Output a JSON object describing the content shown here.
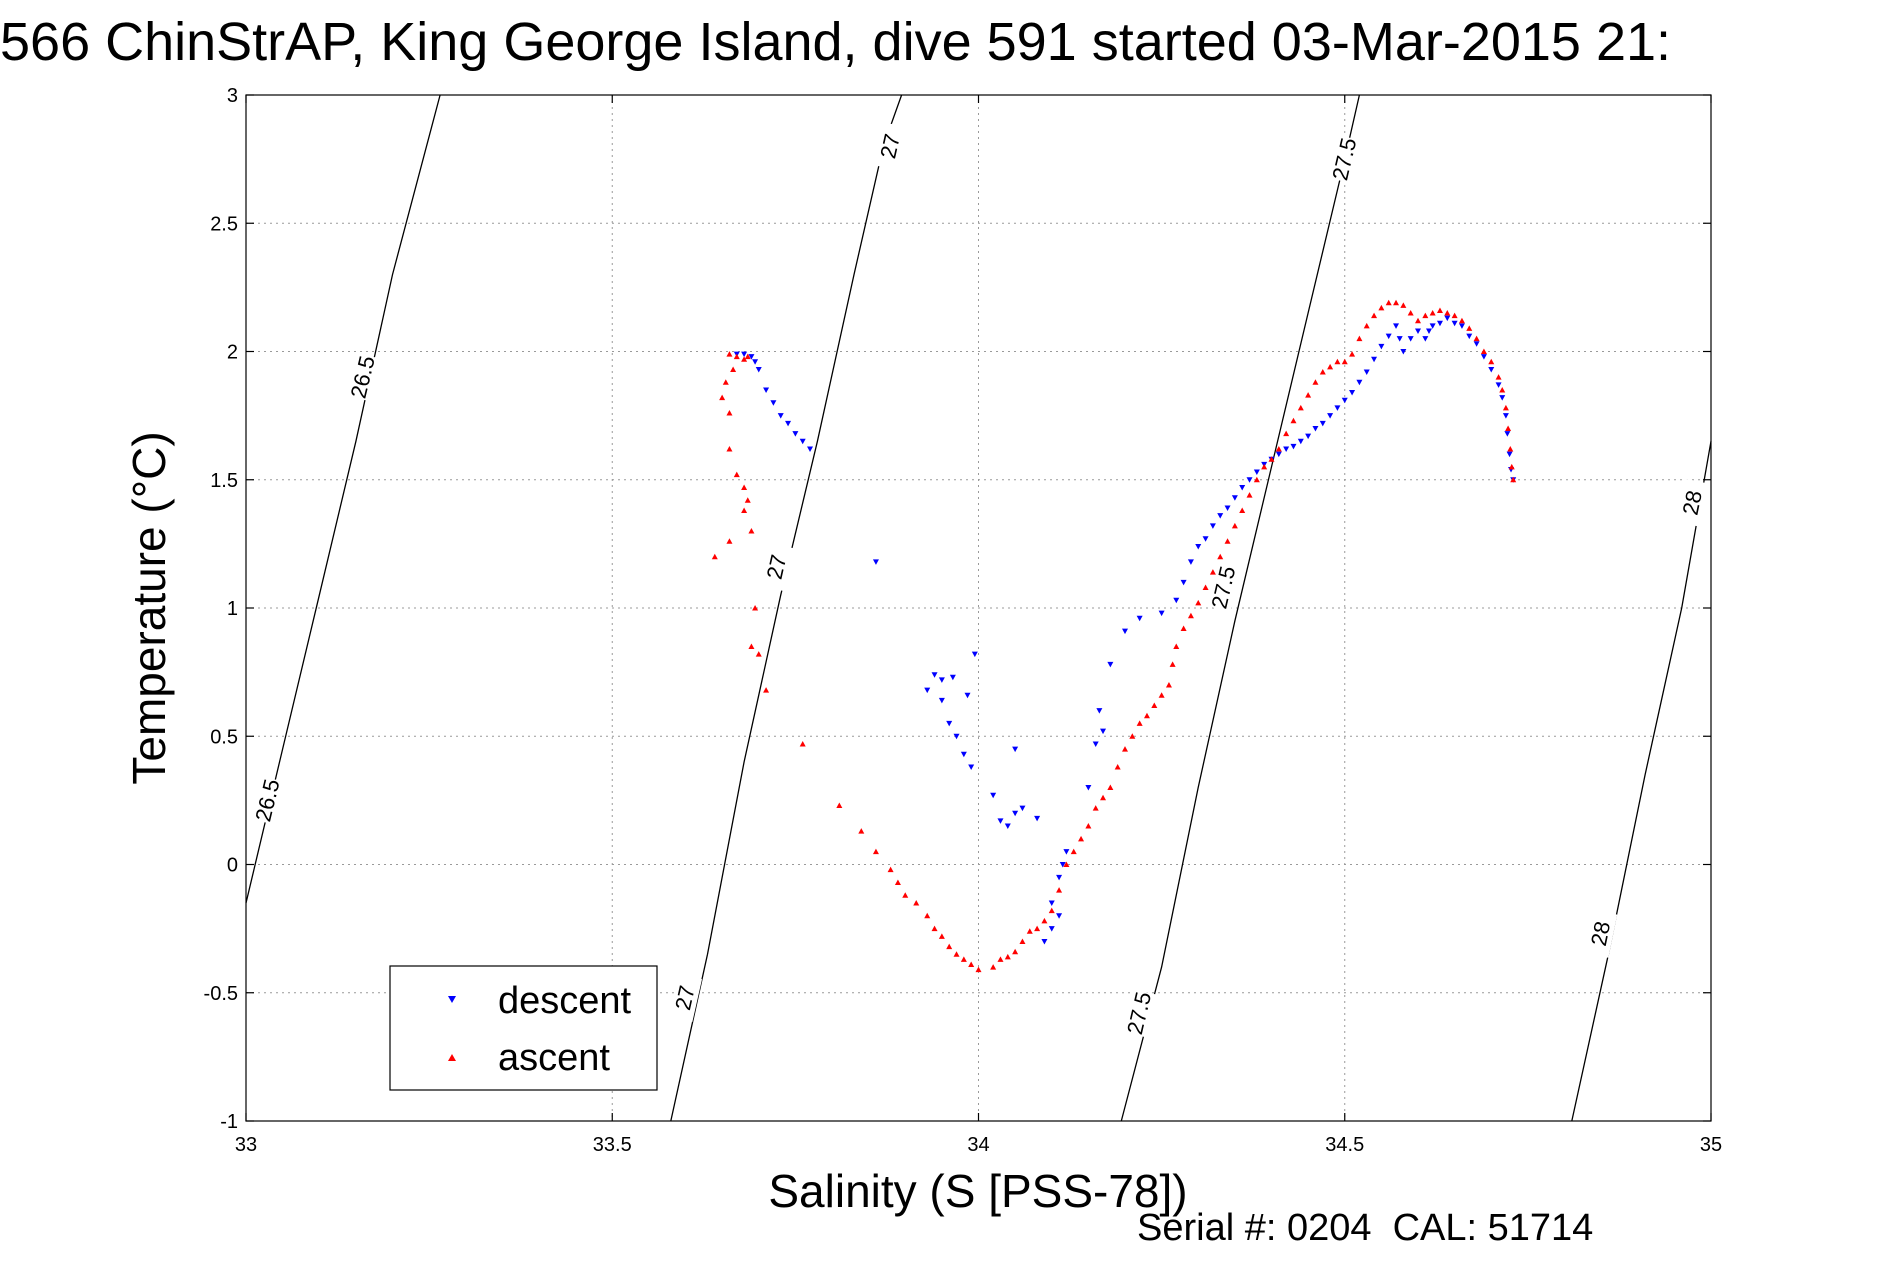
{
  "chart_data": {
    "type": "scatter",
    "title": "566 ChinStrAP, King George Island, dive 591 started 03-Mar-2015 21:",
    "xlabel": "Salinity (S [PSS-78])",
    "ylabel": "Temperature (°C)",
    "xlim": [
      33,
      35
    ],
    "ylim": [
      -1,
      3
    ],
    "x_ticks": [
      33,
      33.5,
      34,
      34.5,
      35
    ],
    "x_tick_labels": [
      "33",
      "33.5",
      "34",
      "34.5",
      "35"
    ],
    "y_ticks": [
      -1,
      -0.5,
      0,
      0.5,
      1,
      1.5,
      2,
      2.5,
      3
    ],
    "y_tick_labels": [
      "-1",
      "-0.5",
      "0",
      "0.5",
      "1",
      "1.5",
      "2",
      "2.5",
      "3"
    ],
    "grid": true,
    "legend_position": "bottom-left",
    "footer": "Serial #: 0204  CAL: 51714",
    "density_contours": [
      {
        "level": "26.5",
        "points": [
          [
            33.0,
            -0.15
          ],
          [
            33.05,
            0.45
          ],
          [
            33.1,
            1.05
          ],
          [
            33.15,
            1.65
          ],
          [
            33.2,
            2.3
          ],
          [
            33.265,
            3.0
          ]
        ],
        "labels": [
          {
            "x": 33.03,
            "y": 0.25,
            "text": "26.5"
          },
          {
            "x": 33.16,
            "y": 1.9,
            "text": "26.5"
          }
        ]
      },
      {
        "level": "27",
        "points": [
          [
            33.58,
            -1.0
          ],
          [
            33.63,
            -0.35
          ],
          [
            33.68,
            0.4
          ],
          [
            33.73,
            1.05
          ],
          [
            33.78,
            1.65
          ],
          [
            33.83,
            2.3
          ],
          [
            33.87,
            2.8
          ],
          [
            33.895,
            3.0
          ]
        ],
        "labels": [
          {
            "x": 33.6,
            "y": -0.52,
            "text": "27"
          },
          {
            "x": 33.725,
            "y": 1.16,
            "text": "27"
          },
          {
            "x": 33.88,
            "y": 2.8,
            "text": "27"
          }
        ]
      },
      {
        "level": "27.5",
        "points": [
          [
            34.195,
            -1.0
          ],
          [
            34.25,
            -0.4
          ],
          [
            34.3,
            0.3
          ],
          [
            34.35,
            0.95
          ],
          [
            34.4,
            1.55
          ],
          [
            34.45,
            2.15
          ],
          [
            34.5,
            2.75
          ],
          [
            34.52,
            3.0
          ]
        ],
        "labels": [
          {
            "x": 34.22,
            "y": -0.58,
            "text": "27.5"
          },
          {
            "x": 34.335,
            "y": 1.08,
            "text": "27.5"
          },
          {
            "x": 34.5,
            "y": 2.75,
            "text": "27.5"
          }
        ]
      },
      {
        "level": "28",
        "points": [
          [
            34.81,
            -1.0
          ],
          [
            34.86,
            -0.35
          ],
          [
            34.91,
            0.35
          ],
          [
            34.96,
            1.0
          ],
          [
            35.0,
            1.65
          ]
        ],
        "labels": [
          {
            "x": 34.85,
            "y": -0.27,
            "text": "28"
          },
          {
            "x": 34.975,
            "y": 1.41,
            "text": "28"
          }
        ]
      }
    ],
    "series": [
      {
        "name": "descent",
        "color": "#0000ff",
        "marker": "triangle-down",
        "points": [
          [
            33.67,
            1.99
          ],
          [
            33.68,
            1.99
          ],
          [
            33.69,
            1.98
          ],
          [
            33.695,
            1.96
          ],
          [
            33.7,
            1.93
          ],
          [
            33.71,
            1.85
          ],
          [
            33.72,
            1.8
          ],
          [
            33.73,
            1.75
          ],
          [
            33.74,
            1.72
          ],
          [
            33.75,
            1.68
          ],
          [
            33.76,
            1.65
          ],
          [
            33.77,
            1.62
          ],
          [
            33.86,
            1.18
          ],
          [
            33.93,
            0.68
          ],
          [
            33.94,
            0.74
          ],
          [
            33.95,
            0.64
          ],
          [
            33.95,
            0.72
          ],
          [
            33.96,
            0.55
          ],
          [
            33.965,
            0.73
          ],
          [
            33.97,
            0.5
          ],
          [
            33.98,
            0.43
          ],
          [
            33.985,
            0.66
          ],
          [
            33.99,
            0.38
          ],
          [
            33.995,
            0.82
          ],
          [
            34.02,
            0.27
          ],
          [
            34.03,
            0.17
          ],
          [
            34.04,
            0.15
          ],
          [
            34.05,
            0.45
          ],
          [
            34.05,
            0.2
          ],
          [
            34.06,
            0.22
          ],
          [
            34.08,
            0.18
          ],
          [
            34.09,
            -0.3
          ],
          [
            34.1,
            -0.25
          ],
          [
            34.1,
            -0.15
          ],
          [
            34.11,
            -0.05
          ],
          [
            34.115,
            0.0
          ],
          [
            34.11,
            -0.2
          ],
          [
            34.12,
            0.05
          ],
          [
            34.15,
            0.3
          ],
          [
            34.16,
            0.47
          ],
          [
            34.165,
            0.6
          ],
          [
            34.17,
            0.52
          ],
          [
            34.18,
            0.78
          ],
          [
            34.2,
            0.91
          ],
          [
            34.22,
            0.96
          ],
          [
            34.25,
            0.98
          ],
          [
            34.27,
            1.03
          ],
          [
            34.28,
            1.1
          ],
          [
            34.29,
            1.18
          ],
          [
            34.3,
            1.24
          ],
          [
            34.31,
            1.27
          ],
          [
            34.32,
            1.32
          ],
          [
            34.33,
            1.36
          ],
          [
            34.34,
            1.39
          ],
          [
            34.35,
            1.43
          ],
          [
            34.36,
            1.47
          ],
          [
            34.37,
            1.5
          ],
          [
            34.38,
            1.53
          ],
          [
            34.39,
            1.56
          ],
          [
            34.4,
            1.58
          ],
          [
            34.41,
            1.6
          ],
          [
            34.42,
            1.62
          ],
          [
            34.43,
            1.63
          ],
          [
            34.44,
            1.65
          ],
          [
            34.45,
            1.67
          ],
          [
            34.46,
            1.7
          ],
          [
            34.47,
            1.72
          ],
          [
            34.48,
            1.75
          ],
          [
            34.49,
            1.78
          ],
          [
            34.5,
            1.81
          ],
          [
            34.51,
            1.84
          ],
          [
            34.52,
            1.88
          ],
          [
            34.53,
            1.92
          ],
          [
            34.54,
            1.97
          ],
          [
            34.55,
            2.02
          ],
          [
            34.56,
            2.06
          ],
          [
            34.57,
            2.1
          ],
          [
            34.575,
            2.05
          ],
          [
            34.58,
            2.0
          ],
          [
            34.59,
            2.05
          ],
          [
            34.6,
            2.08
          ],
          [
            34.61,
            2.05
          ],
          [
            34.615,
            2.08
          ],
          [
            34.62,
            2.1
          ],
          [
            34.63,
            2.11
          ],
          [
            34.64,
            2.13
          ],
          [
            34.65,
            2.11
          ],
          [
            34.66,
            2.1
          ],
          [
            34.67,
            2.06
          ],
          [
            34.68,
            2.03
          ],
          [
            34.69,
            1.98
          ],
          [
            34.7,
            1.93
          ],
          [
            34.71,
            1.87
          ],
          [
            34.715,
            1.82
          ],
          [
            34.72,
            1.75
          ],
          [
            34.722,
            1.68
          ],
          [
            34.725,
            1.6
          ],
          [
            34.727,
            1.54
          ],
          [
            34.73,
            1.5
          ]
        ]
      },
      {
        "name": "ascent",
        "color": "#ff0000",
        "marker": "triangle-up",
        "points": [
          [
            33.66,
            1.99
          ],
          [
            33.67,
            1.98
          ],
          [
            33.68,
            1.97
          ],
          [
            33.685,
            1.98
          ],
          [
            33.665,
            1.93
          ],
          [
            33.655,
            1.88
          ],
          [
            33.65,
            1.82
          ],
          [
            33.66,
            1.76
          ],
          [
            33.66,
            1.62
          ],
          [
            33.67,
            1.52
          ],
          [
            33.68,
            1.47
          ],
          [
            33.68,
            1.38
          ],
          [
            33.685,
            1.42
          ],
          [
            33.69,
            1.3
          ],
          [
            33.64,
            1.2
          ],
          [
            33.66,
            1.26
          ],
          [
            33.695,
            1.0
          ],
          [
            33.69,
            0.85
          ],
          [
            33.7,
            0.82
          ],
          [
            33.71,
            0.68
          ],
          [
            33.76,
            0.47
          ],
          [
            33.81,
            0.23
          ],
          [
            33.84,
            0.13
          ],
          [
            33.86,
            0.05
          ],
          [
            33.88,
            -0.02
          ],
          [
            33.89,
            -0.07
          ],
          [
            33.9,
            -0.12
          ],
          [
            33.915,
            -0.15
          ],
          [
            33.93,
            -0.2
          ],
          [
            33.94,
            -0.25
          ],
          [
            33.95,
            -0.28
          ],
          [
            33.96,
            -0.32
          ],
          [
            33.97,
            -0.35
          ],
          [
            33.98,
            -0.37
          ],
          [
            33.99,
            -0.39
          ],
          [
            34.0,
            -0.41
          ],
          [
            34.02,
            -0.4
          ],
          [
            34.03,
            -0.37
          ],
          [
            34.04,
            -0.36
          ],
          [
            34.05,
            -0.34
          ],
          [
            34.06,
            -0.3
          ],
          [
            34.07,
            -0.26
          ],
          [
            34.08,
            -0.25
          ],
          [
            34.09,
            -0.22
          ],
          [
            34.1,
            -0.18
          ],
          [
            34.11,
            -0.1
          ],
          [
            34.12,
            0.0
          ],
          [
            34.13,
            0.05
          ],
          [
            34.14,
            0.1
          ],
          [
            34.15,
            0.15
          ],
          [
            34.16,
            0.22
          ],
          [
            34.17,
            0.26
          ],
          [
            34.18,
            0.3
          ],
          [
            34.19,
            0.38
          ],
          [
            34.2,
            0.45
          ],
          [
            34.21,
            0.5
          ],
          [
            34.22,
            0.55
          ],
          [
            34.23,
            0.58
          ],
          [
            34.24,
            0.62
          ],
          [
            34.25,
            0.66
          ],
          [
            34.26,
            0.7
          ],
          [
            34.265,
            0.78
          ],
          [
            34.27,
            0.85
          ],
          [
            34.28,
            0.92
          ],
          [
            34.29,
            0.97
          ],
          [
            34.3,
            1.02
          ],
          [
            34.31,
            1.08
          ],
          [
            34.32,
            1.14
          ],
          [
            34.33,
            1.2
          ],
          [
            34.34,
            1.26
          ],
          [
            34.35,
            1.32
          ],
          [
            34.36,
            1.38
          ],
          [
            34.37,
            1.44
          ],
          [
            34.38,
            1.5
          ],
          [
            34.39,
            1.55
          ],
          [
            34.4,
            1.58
          ],
          [
            34.41,
            1.62
          ],
          [
            34.42,
            1.68
          ],
          [
            34.43,
            1.73
          ],
          [
            34.44,
            1.78
          ],
          [
            34.45,
            1.83
          ],
          [
            34.46,
            1.88
          ],
          [
            34.47,
            1.92
          ],
          [
            34.48,
            1.94
          ],
          [
            34.49,
            1.96
          ],
          [
            34.5,
            1.96
          ],
          [
            34.51,
            1.99
          ],
          [
            34.52,
            2.05
          ],
          [
            34.53,
            2.1
          ],
          [
            34.54,
            2.14
          ],
          [
            34.55,
            2.17
          ],
          [
            34.56,
            2.19
          ],
          [
            34.57,
            2.19
          ],
          [
            34.58,
            2.18
          ],
          [
            34.59,
            2.15
          ],
          [
            34.6,
            2.12
          ],
          [
            34.61,
            2.14
          ],
          [
            34.62,
            2.15
          ],
          [
            34.63,
            2.16
          ],
          [
            34.64,
            2.15
          ],
          [
            34.65,
            2.14
          ],
          [
            34.66,
            2.12
          ],
          [
            34.67,
            2.09
          ],
          [
            34.68,
            2.05
          ],
          [
            34.69,
            2.0
          ],
          [
            34.7,
            1.96
          ],
          [
            34.71,
            1.9
          ],
          [
            34.715,
            1.85
          ],
          [
            34.72,
            1.78
          ],
          [
            34.723,
            1.7
          ],
          [
            34.726,
            1.62
          ],
          [
            34.728,
            1.55
          ],
          [
            34.73,
            1.5
          ]
        ]
      }
    ]
  }
}
